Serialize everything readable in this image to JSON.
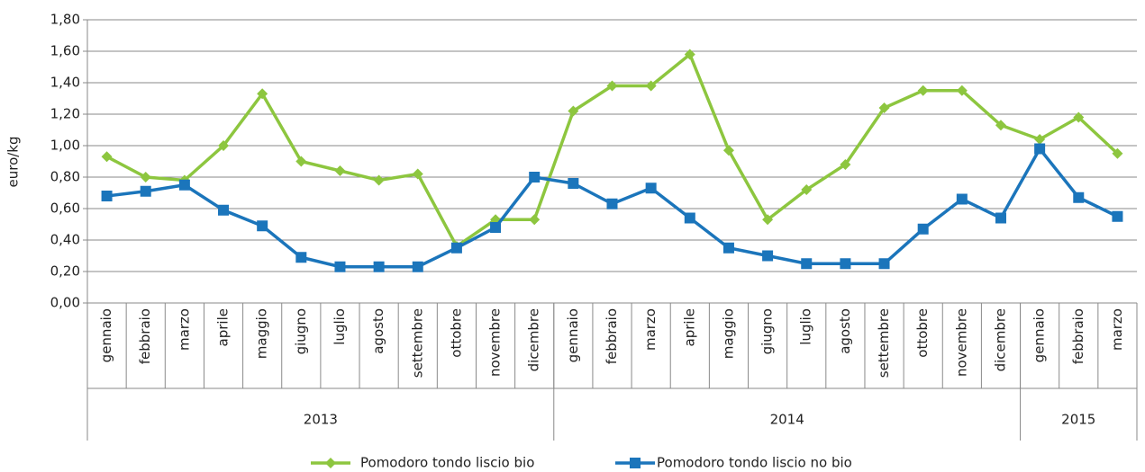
{
  "chart_data": {
    "type": "line",
    "y_label": "euro/kg",
    "groups": [
      {
        "label": "2013",
        "months": [
          "gennaio",
          "febbraio",
          "marzo",
          "aprile",
          "maggio",
          "giugno",
          "luglio",
          "agosto",
          "settembre",
          "ottobre",
          "novembre",
          "dicembre"
        ]
      },
      {
        "label": "2014",
        "months": [
          "gennaio",
          "febbraio",
          "marzo",
          "aprile",
          "maggio",
          "giugno",
          "luglio",
          "agosto",
          "settembre",
          "ottobre",
          "novembre",
          "dicembre"
        ]
      },
      {
        "label": "2015",
        "months": [
          "gennaio",
          "febbraio",
          "marzo"
        ]
      }
    ],
    "series": [
      {
        "name": "Pomodoro tondo liscio bio",
        "color": "#8dc63f",
        "marker": "diamond",
        "values": [
          0.93,
          0.8,
          0.78,
          1.0,
          1.33,
          0.9,
          0.84,
          0.78,
          0.82,
          0.36,
          0.53,
          0.53,
          1.22,
          1.38,
          1.38,
          1.58,
          0.97,
          0.53,
          0.72,
          0.88,
          1.24,
          1.35,
          1.35,
          1.13,
          1.04,
          1.18,
          0.95
        ]
      },
      {
        "name": "Pomodoro tondo liscio no bio",
        "color": "#1b75bb",
        "marker": "square",
        "values": [
          0.68,
          0.71,
          0.75,
          0.59,
          0.49,
          0.29,
          0.23,
          0.23,
          0.23,
          0.35,
          0.48,
          0.8,
          0.76,
          0.63,
          0.73,
          0.54,
          0.35,
          0.3,
          0.25,
          0.25,
          0.25,
          0.47,
          0.66,
          0.54,
          0.98,
          0.67,
          0.55
        ]
      }
    ],
    "ylim": [
      0,
      1.8
    ],
    "yticks": [
      {
        "value": 0,
        "label": "0,00"
      },
      {
        "value": 0.2,
        "label": "0,20"
      },
      {
        "value": 0.4,
        "label": "0,40"
      },
      {
        "value": 0.6,
        "label": "0,60"
      },
      {
        "value": 0.8,
        "label": "0,80"
      },
      {
        "value": 1.0,
        "label": "1,00"
      },
      {
        "value": 1.2,
        "label": "1,20"
      },
      {
        "value": 1.4,
        "label": "1,40"
      },
      {
        "value": 1.6,
        "label": "1,60"
      },
      {
        "value": 1.8,
        "label": "1,80"
      }
    ],
    "grid": true,
    "legend": "bottom"
  }
}
